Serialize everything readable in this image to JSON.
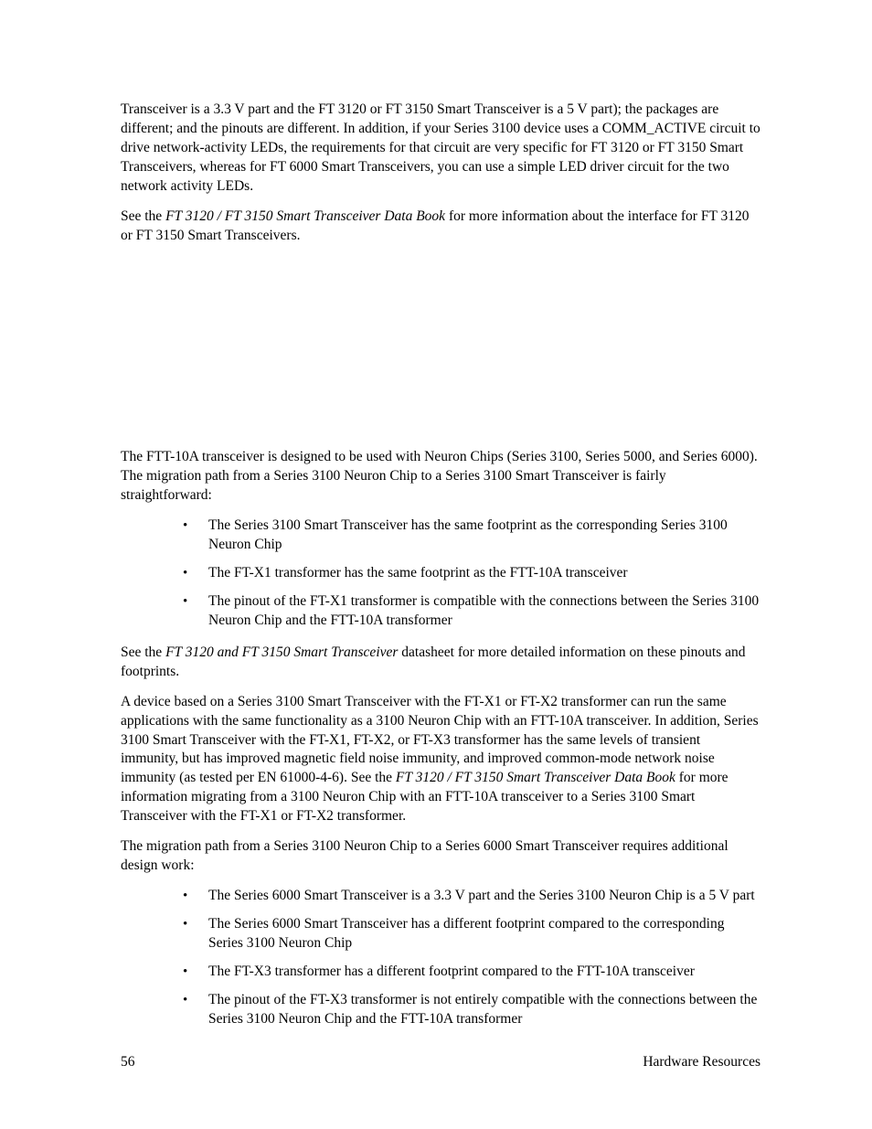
{
  "para1": {
    "a": "Transceiver is a 3.3 V part and the FT 3120 or FT 3150 Smart Transceiver is a 5 V part); the packages are different; and the pinouts are different.  In addition, if your Series 3100 device uses a COMM_ACTIVE circuit to drive network-activity LEDs, the requirements for that circuit are very specific for FT 3120 or FT 3150 Smart Transceivers, whereas for FT 6000 Smart Transceivers, you can use a simple LED driver circuit for the two network activity LEDs."
  },
  "para2": {
    "a": "See the ",
    "i": "FT 3120 / FT 3150 Smart Transceiver Data Book",
    "b": " for more information about the interface for FT 3120 or FT 3150 Smart Transceivers."
  },
  "para3": {
    "a": "The FTT-10A transceiver is designed to be used with Neuron Chips (Series 3100, Series 5000, and Series 6000).  The migration path from a Series 3100 Neuron Chip to a Series 3100 Smart Transceiver is fairly straightforward:"
  },
  "list1": [
    "The Series 3100 Smart Transceiver has the same footprint as the corresponding Series 3100 Neuron Chip",
    "The FT-X1 transformer has the same footprint as the FTT-10A transceiver",
    "The pinout of the FT-X1 transformer is compatible with the connections between the Series 3100 Neuron Chip and the FTT-10A transformer"
  ],
  "para4": {
    "a": "See the ",
    "i": "FT 3120 and FT 3150 Smart Transceiver",
    "b": " datasheet for more detailed information on these pinouts and footprints."
  },
  "para5": {
    "a": "A device based on a Series 3100 Smart Transceiver with the FT-X1 or FT-X2 transformer can run the same applications with the same functionality as a 3100 Neuron Chip with an FTT-10A transceiver.  In addition, Series 3100 Smart Transceiver with the FT-X1, FT-X2, or FT-X3 transformer has the same levels of transient immunity, but has improved magnetic field noise immunity, and improved common-mode network noise immunity (as tested per EN 61000-4-6).  See the ",
    "i": "FT 3120 / FT 3150 Smart Transceiver Data Book",
    "b": " for more information migrating from a 3100 Neuron Chip with an FTT-10A transceiver to a Series 3100 Smart Transceiver with the FT-X1 or FT-X2 transformer."
  },
  "para6": {
    "a": "The migration path from a Series 3100 Neuron Chip to a Series 6000 Smart Transceiver requires additional design work:"
  },
  "list2": [
    "The Series 6000 Smart Transceiver is a 3.3 V part and the Series 3100 Neuron Chip is a 5 V part",
    "The Series 6000 Smart Transceiver has a different footprint compared to the corresponding Series 3100 Neuron Chip",
    "The FT-X3 transformer has a different footprint compared to the FTT-10A transceiver",
    "The pinout of the FT-X3 transformer is not entirely compatible with the connections between the Series 3100 Neuron Chip and the FTT-10A transformer"
  ],
  "footer": {
    "page": "56",
    "title": "Hardware Resources"
  }
}
